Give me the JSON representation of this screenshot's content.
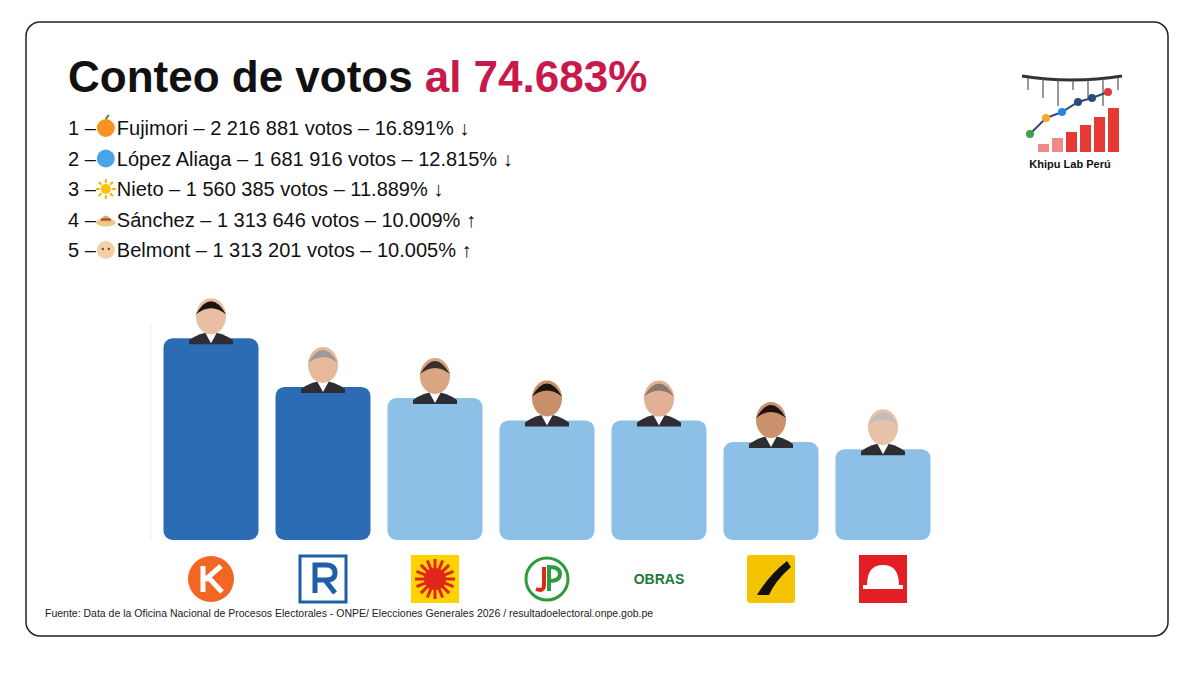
{
  "title": {
    "text": "Conteo de votos",
    "highlight": "al 74.683%"
  },
  "ranking": [
    {
      "rank": "1 –",
      "label": "Fujimori  – 2 216 881 votos – 16.891% ↓"
    },
    {
      "rank": "2 –",
      "label": "López Aliaga – 1 681 916 votos – 12.815% ↓"
    },
    {
      "rank": "3 –",
      "label": "Nieto – 1 560 385 votos – 11.889% ↓"
    },
    {
      "rank": "4 –",
      "label": "Sánchez – 1 313 646 votos – 10.009% ↑"
    },
    {
      "rank": "5 –",
      "label": "Belmont – 1 313 201 votos – 10.005% ↑"
    }
  ],
  "brand": "Khipu Lab Perú",
  "source": "Fuente: Data de la Oficina Nacional de Procesos Electorales - ONPE/ Elecciones Generales 2026 / resultadoelectoral.onpe.gob.pe",
  "chart_data": {
    "type": "bar",
    "categories": [
      null,
      null,
      null,
      null,
      "OBRAS",
      null,
      null
    ],
    "values": [
      16.891,
      12.815,
      11.889,
      10.009,
      10.005,
      8.2,
      7.6
    ],
    "colors": [
      "#2b6cb5",
      "#2b6cb5",
      "#8dc0e6",
      "#8dc0e6",
      "#8dc0e6",
      "#8dc0e6",
      "#8dc0e6"
    ],
    "ylim": [
      0,
      18
    ],
    "yticks": [],
    "tick_labels": false,
    "grid": false,
    "data_labels": false
  }
}
